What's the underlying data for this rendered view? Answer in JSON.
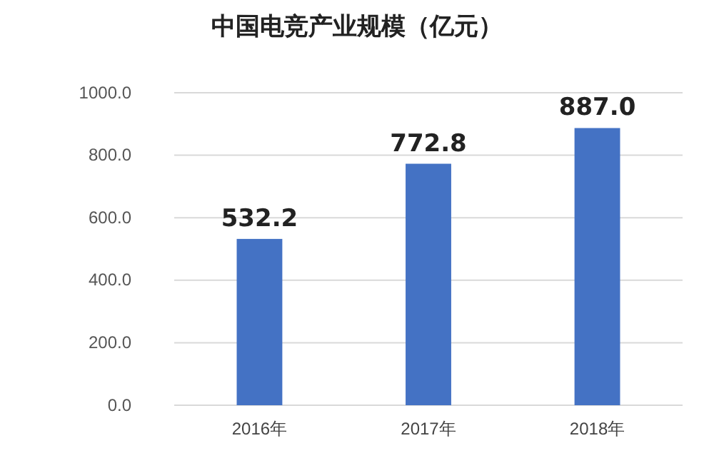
{
  "chart_data": {
    "type": "bar",
    "title": "中国电竞产业规模（亿元）",
    "categories": [
      "2016年",
      "2017年",
      "2018年"
    ],
    "values": [
      532.2,
      772.8,
      887.0
    ],
    "value_labels": [
      "532.2",
      "772.8",
      "887.0"
    ],
    "color": "#4472c4",
    "ylim": [
      0,
      1000
    ],
    "yticks": [
      {
        "value": 0,
        "label": "0.0"
      },
      {
        "value": 200,
        "label": "200.0"
      },
      {
        "value": 400,
        "label": "400.0"
      },
      {
        "value": 600,
        "label": "600.0"
      },
      {
        "value": 800,
        "label": "800.0"
      },
      {
        "value": 1000,
        "label": "1000.0"
      }
    ],
    "grid": "y"
  }
}
